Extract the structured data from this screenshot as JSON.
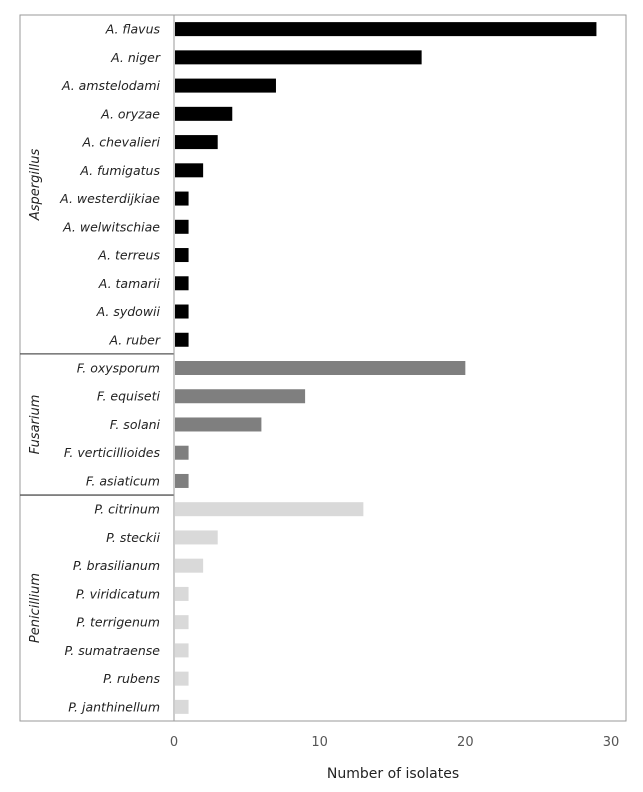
{
  "chart_data": {
    "type": "bar",
    "orientation": "horizontal",
    "title": "",
    "xlabel": "Number of isolates",
    "ylabel": "",
    "xlim": [
      0,
      30
    ],
    "xticks": [
      0,
      10,
      20,
      30
    ],
    "grid": false,
    "legend": "none",
    "groups": [
      {
        "name": "Aspergillus",
        "color": "#000000",
        "categories": [
          "A. flavus",
          "A. niger",
          "A. amstelodami",
          "A. oryzae",
          "A. chevalieri",
          "A. fumigatus",
          "A. westerdijkiae",
          "A. welwitschiae",
          "A. terreus",
          "A. tamarii",
          "A. sydowii",
          "A. ruber"
        ],
        "values": [
          29,
          17,
          7,
          4,
          3,
          2,
          1,
          1,
          1,
          1,
          1,
          1
        ]
      },
      {
        "name": "Fusarium",
        "color": "#7f7f7f",
        "categories": [
          "F. oxysporum",
          "F. equiseti",
          "F. solani",
          "F. verticillioides",
          "F. asiaticum"
        ],
        "values": [
          20,
          9,
          6,
          1,
          1
        ]
      },
      {
        "name": "Penicillium",
        "color": "#d9d9d9",
        "categories": [
          "P. citrinum",
          "P. steckii",
          "P. brasilianum",
          "P. viridicatum",
          "P. terrigenum",
          "P. sumatraense",
          "P. rubens",
          "P. janthinellum"
        ],
        "values": [
          13,
          3,
          2,
          1,
          1,
          1,
          1,
          1
        ]
      }
    ]
  }
}
